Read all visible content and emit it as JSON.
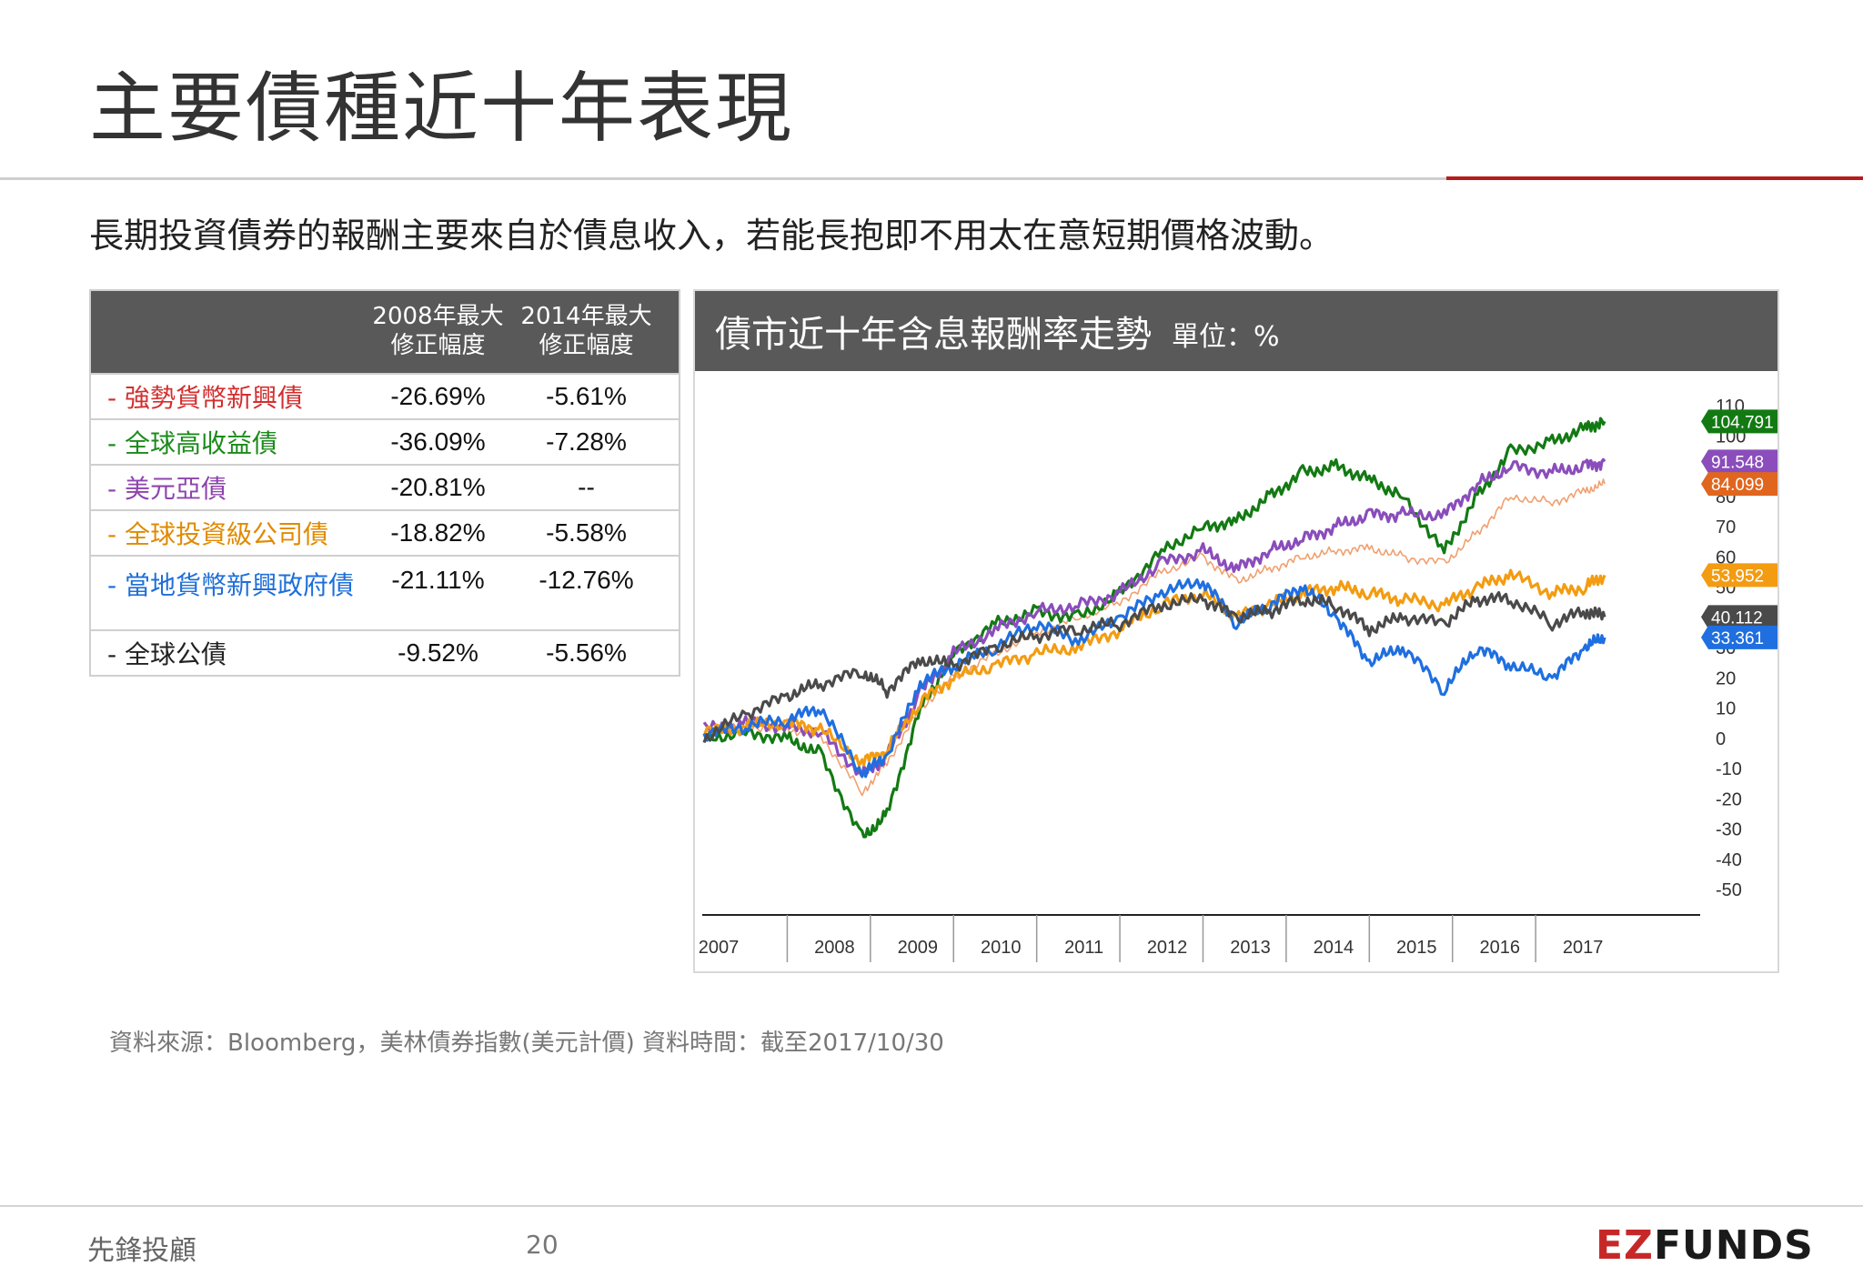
{
  "header": {
    "title": "主要債種近十年表現",
    "subtitle": "長期投資債券的報酬主要來自於債息收入，若能長抱即不用太在意短期價格波動。"
  },
  "table": {
    "col1": "2008年最大\n修正幅度",
    "col2": "2014年最大\n修正幅度",
    "rows": [
      {
        "name": "- 強勢貨幣新興債",
        "color": "#d32f2f",
        "v2008": "-26.69%",
        "v2014": "-5.61%"
      },
      {
        "name": "- 全球高收益債",
        "color": "#1b8a1b",
        "v2008": "-36.09%",
        "v2014": "-7.28%"
      },
      {
        "name": "- 美元亞債",
        "color": "#8e44ad",
        "v2008": "-20.81%",
        "v2014": "--"
      },
      {
        "name": "- 全球投資級公司債",
        "color": "#e08a00",
        "v2008": "-18.82%",
        "v2014": "-5.58%"
      },
      {
        "name": "- 當地貨幣新興政府債",
        "color": "#1e6fd9",
        "v2008": "-21.11%",
        "v2014": "-12.76%"
      },
      {
        "name": "- 全球公債",
        "color": "#222222",
        "v2008": "-9.52%",
        "v2014": "-5.56%"
      }
    ]
  },
  "chart": {
    "title": "債市近十年含息報酬率走勢",
    "unit": "單位：%"
  },
  "chart_data": {
    "type": "line",
    "ylim": [
      -50,
      110
    ],
    "yticks": [
      110,
      100,
      80,
      70,
      60,
      50,
      30,
      20,
      10,
      0,
      -10,
      -20,
      -30,
      -40,
      -50
    ],
    "xticks": [
      "2007",
      "2008",
      "2009",
      "2010",
      "2011",
      "2012",
      "2013",
      "2014",
      "2015",
      "2016",
      "2017"
    ],
    "x": [
      2007.0,
      2007.5,
      2008.0,
      2008.4,
      2008.9,
      2009.2,
      2009.6,
      2010.0,
      2010.5,
      2011.0,
      2011.5,
      2012.0,
      2012.5,
      2013.0,
      2013.4,
      2013.8,
      2014.2,
      2014.6,
      2015.0,
      2015.4,
      2015.9,
      2016.3,
      2016.7,
      2017.2,
      2017.6,
      2017.83
    ],
    "series": [
      {
        "name": "強勢貨幣新興債",
        "color": "#f0a070",
        "thin": true,
        "values": [
          2,
          4,
          3,
          1,
          -18,
          -8,
          10,
          20,
          28,
          35,
          40,
          45,
          55,
          60,
          52,
          56,
          60,
          62,
          63,
          60,
          58,
          68,
          80,
          78,
          82,
          84.099
        ]
      },
      {
        "name": "全球高收益債",
        "color": "#137a13",
        "values": [
          0,
          2,
          0,
          -5,
          -33,
          -25,
          10,
          28,
          38,
          42,
          40,
          48,
          62,
          70,
          72,
          80,
          88,
          90,
          86,
          80,
          62,
          80,
          95,
          98,
          103,
          104.791
        ]
      },
      {
        "name": "美元亞債",
        "color": "#8a4dbb",
        "values": [
          3,
          5,
          4,
          2,
          -12,
          -6,
          15,
          28,
          36,
          42,
          44,
          48,
          58,
          62,
          56,
          62,
          66,
          70,
          74,
          74,
          74,
          84,
          90,
          88,
          90,
          91.548
        ]
      },
      {
        "name": "全球投資級公司債",
        "color": "#f39c12",
        "values": [
          2,
          4,
          5,
          3,
          -8,
          -4,
          12,
          20,
          24,
          28,
          30,
          36,
          44,
          48,
          40,
          44,
          48,
          50,
          48,
          46,
          44,
          50,
          54,
          48,
          50,
          53.952
        ]
      },
      {
        "name": "當地貨幣新興政府債",
        "color": "#1f6fe0",
        "values": [
          1,
          4,
          6,
          10,
          -12,
          -6,
          18,
          24,
          30,
          38,
          32,
          40,
          48,
          52,
          38,
          44,
          50,
          40,
          25,
          30,
          16,
          30,
          24,
          20,
          30,
          33.361
        ]
      },
      {
        "name": "全球公債",
        "color": "#4a4a4a",
        "values": [
          0,
          8,
          14,
          18,
          22,
          16,
          26,
          24,
          30,
          34,
          36,
          38,
          44,
          46,
          40,
          42,
          46,
          44,
          36,
          40,
          38,
          46,
          46,
          38,
          42,
          40.112
        ]
      }
    ]
  },
  "footer": {
    "source": "資料來源：Bloomberg，美林債券指數(美元計價) 資料時間：截至2017/10/30",
    "left": "先鋒投顧",
    "page": "20",
    "logo_ez": "EZ",
    "logo_funds": "FUNDS"
  }
}
